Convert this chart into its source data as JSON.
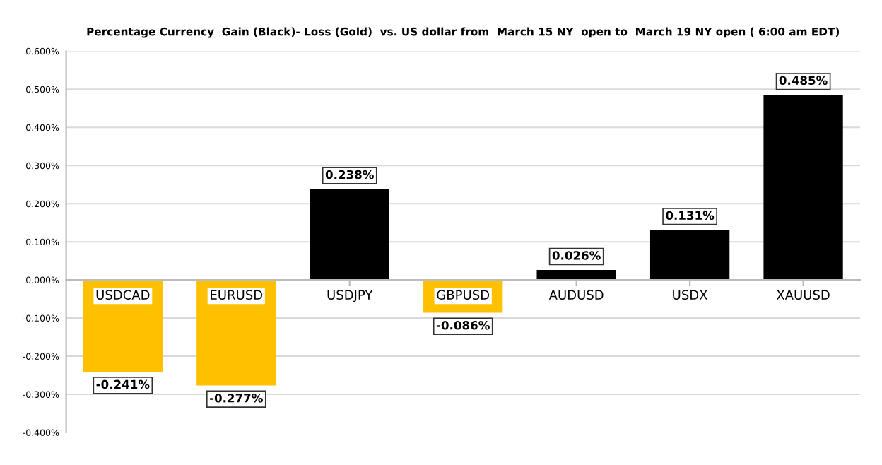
{
  "chart_data": {
    "type": "bar",
    "title": "Percentage Currency  Gain (Black)- Loss (Gold)  vs. US dollar from  March 15 NY  open to  March 19 NY open ( 6:00 am EDT)",
    "categories": [
      "USDCAD",
      "EURUSD",
      "USDJPY",
      "GBPUSD",
      "AUDUSD",
      "USDX",
      "XAUUSD"
    ],
    "values": [
      -0.241,
      -0.277,
      0.238,
      -0.086,
      0.026,
      0.131,
      0.485
    ],
    "colors": [
      "#ffc000",
      "#ffc000",
      "#000000",
      "#ffc000",
      "#000000",
      "#000000",
      "#000000"
    ],
    "value_labels": [
      "-0.241%",
      "-0.277%",
      "0.238%",
      "-0.086%",
      "0.026%",
      "0.131%",
      "0.485%"
    ],
    "ylim": [
      -0.4,
      0.6
    ],
    "yticks": [
      {
        "value": -0.4,
        "label": "-0.400%"
      },
      {
        "value": -0.3,
        "label": "-0.300%"
      },
      {
        "value": -0.2,
        "label": "-0.200%"
      },
      {
        "value": -0.1,
        "label": "-0.100%"
      },
      {
        "value": 0,
        "label": "0.000%"
      },
      {
        "value": 0.1,
        "label": "0.100%"
      },
      {
        "value": 0.2,
        "label": "0.200%"
      },
      {
        "value": 0.3,
        "label": "0.300%"
      },
      {
        "value": 0.4,
        "label": "0.400%"
      },
      {
        "value": 0.5,
        "label": "0.500%"
      },
      {
        "value": 0.6,
        "label": "0.600%"
      }
    ],
    "grid": "y",
    "legend": false
  }
}
